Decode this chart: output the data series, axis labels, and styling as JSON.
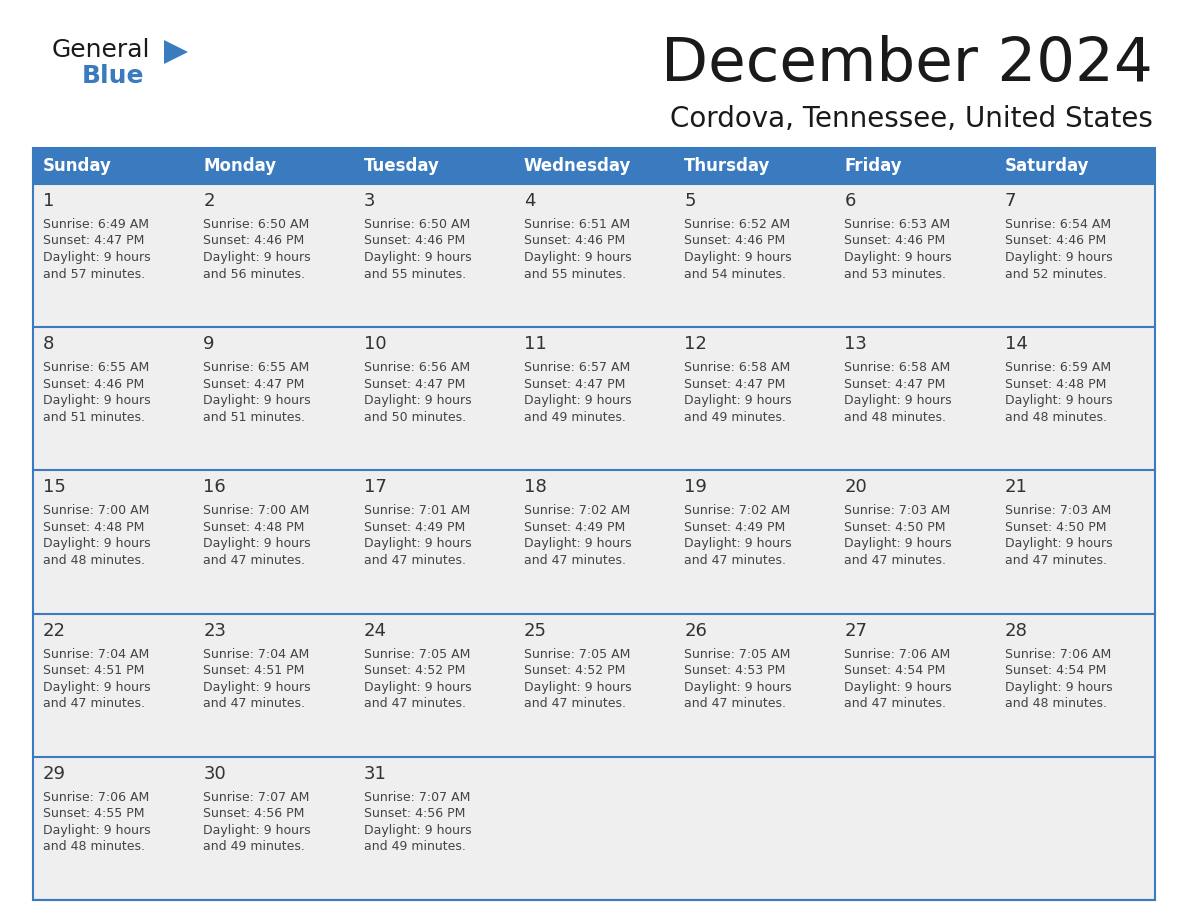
{
  "title": "December 2024",
  "subtitle": "Cordova, Tennessee, United States",
  "header_color": "#3a7abf",
  "header_text_color": "#ffffff",
  "cell_bg_color": "#efefef",
  "border_color": "#3a7abf",
  "text_color": "#333333",
  "days_of_week": [
    "Sunday",
    "Monday",
    "Tuesday",
    "Wednesday",
    "Thursday",
    "Friday",
    "Saturday"
  ],
  "weeks": [
    [
      {
        "day": "1",
        "sunrise": "6:49 AM",
        "sunset": "4:47 PM",
        "daylight_line1": "Daylight: 9 hours",
        "daylight_line2": "and 57 minutes."
      },
      {
        "day": "2",
        "sunrise": "6:50 AM",
        "sunset": "4:46 PM",
        "daylight_line1": "Daylight: 9 hours",
        "daylight_line2": "and 56 minutes."
      },
      {
        "day": "3",
        "sunrise": "6:50 AM",
        "sunset": "4:46 PM",
        "daylight_line1": "Daylight: 9 hours",
        "daylight_line2": "and 55 minutes."
      },
      {
        "day": "4",
        "sunrise": "6:51 AM",
        "sunset": "4:46 PM",
        "daylight_line1": "Daylight: 9 hours",
        "daylight_line2": "and 55 minutes."
      },
      {
        "day": "5",
        "sunrise": "6:52 AM",
        "sunset": "4:46 PM",
        "daylight_line1": "Daylight: 9 hours",
        "daylight_line2": "and 54 minutes."
      },
      {
        "day": "6",
        "sunrise": "6:53 AM",
        "sunset": "4:46 PM",
        "daylight_line1": "Daylight: 9 hours",
        "daylight_line2": "and 53 minutes."
      },
      {
        "day": "7",
        "sunrise": "6:54 AM",
        "sunset": "4:46 PM",
        "daylight_line1": "Daylight: 9 hours",
        "daylight_line2": "and 52 minutes."
      }
    ],
    [
      {
        "day": "8",
        "sunrise": "6:55 AM",
        "sunset": "4:46 PM",
        "daylight_line1": "Daylight: 9 hours",
        "daylight_line2": "and 51 minutes."
      },
      {
        "day": "9",
        "sunrise": "6:55 AM",
        "sunset": "4:47 PM",
        "daylight_line1": "Daylight: 9 hours",
        "daylight_line2": "and 51 minutes."
      },
      {
        "day": "10",
        "sunrise": "6:56 AM",
        "sunset": "4:47 PM",
        "daylight_line1": "Daylight: 9 hours",
        "daylight_line2": "and 50 minutes."
      },
      {
        "day": "11",
        "sunrise": "6:57 AM",
        "sunset": "4:47 PM",
        "daylight_line1": "Daylight: 9 hours",
        "daylight_line2": "and 49 minutes."
      },
      {
        "day": "12",
        "sunrise": "6:58 AM",
        "sunset": "4:47 PM",
        "daylight_line1": "Daylight: 9 hours",
        "daylight_line2": "and 49 minutes."
      },
      {
        "day": "13",
        "sunrise": "6:58 AM",
        "sunset": "4:47 PM",
        "daylight_line1": "Daylight: 9 hours",
        "daylight_line2": "and 48 minutes."
      },
      {
        "day": "14",
        "sunrise": "6:59 AM",
        "sunset": "4:48 PM",
        "daylight_line1": "Daylight: 9 hours",
        "daylight_line2": "and 48 minutes."
      }
    ],
    [
      {
        "day": "15",
        "sunrise": "7:00 AM",
        "sunset": "4:48 PM",
        "daylight_line1": "Daylight: 9 hours",
        "daylight_line2": "and 48 minutes."
      },
      {
        "day": "16",
        "sunrise": "7:00 AM",
        "sunset": "4:48 PM",
        "daylight_line1": "Daylight: 9 hours",
        "daylight_line2": "and 47 minutes."
      },
      {
        "day": "17",
        "sunrise": "7:01 AM",
        "sunset": "4:49 PM",
        "daylight_line1": "Daylight: 9 hours",
        "daylight_line2": "and 47 minutes."
      },
      {
        "day": "18",
        "sunrise": "7:02 AM",
        "sunset": "4:49 PM",
        "daylight_line1": "Daylight: 9 hours",
        "daylight_line2": "and 47 minutes."
      },
      {
        "day": "19",
        "sunrise": "7:02 AM",
        "sunset": "4:49 PM",
        "daylight_line1": "Daylight: 9 hours",
        "daylight_line2": "and 47 minutes."
      },
      {
        "day": "20",
        "sunrise": "7:03 AM",
        "sunset": "4:50 PM",
        "daylight_line1": "Daylight: 9 hours",
        "daylight_line2": "and 47 minutes."
      },
      {
        "day": "21",
        "sunrise": "7:03 AM",
        "sunset": "4:50 PM",
        "daylight_line1": "Daylight: 9 hours",
        "daylight_line2": "and 47 minutes."
      }
    ],
    [
      {
        "day": "22",
        "sunrise": "7:04 AM",
        "sunset": "4:51 PM",
        "daylight_line1": "Daylight: 9 hours",
        "daylight_line2": "and 47 minutes."
      },
      {
        "day": "23",
        "sunrise": "7:04 AM",
        "sunset": "4:51 PM",
        "daylight_line1": "Daylight: 9 hours",
        "daylight_line2": "and 47 minutes."
      },
      {
        "day": "24",
        "sunrise": "7:05 AM",
        "sunset": "4:52 PM",
        "daylight_line1": "Daylight: 9 hours",
        "daylight_line2": "and 47 minutes."
      },
      {
        "day": "25",
        "sunrise": "7:05 AM",
        "sunset": "4:52 PM",
        "daylight_line1": "Daylight: 9 hours",
        "daylight_line2": "and 47 minutes."
      },
      {
        "day": "26",
        "sunrise": "7:05 AM",
        "sunset": "4:53 PM",
        "daylight_line1": "Daylight: 9 hours",
        "daylight_line2": "and 47 minutes."
      },
      {
        "day": "27",
        "sunrise": "7:06 AM",
        "sunset": "4:54 PM",
        "daylight_line1": "Daylight: 9 hours",
        "daylight_line2": "and 47 minutes."
      },
      {
        "day": "28",
        "sunrise": "7:06 AM",
        "sunset": "4:54 PM",
        "daylight_line1": "Daylight: 9 hours",
        "daylight_line2": "and 48 minutes."
      }
    ],
    [
      {
        "day": "29",
        "sunrise": "7:06 AM",
        "sunset": "4:55 PM",
        "daylight_line1": "Daylight: 9 hours",
        "daylight_line2": "and 48 minutes."
      },
      {
        "day": "30",
        "sunrise": "7:07 AM",
        "sunset": "4:56 PM",
        "daylight_line1": "Daylight: 9 hours",
        "daylight_line2": "and 49 minutes."
      },
      {
        "day": "31",
        "sunrise": "7:07 AM",
        "sunset": "4:56 PM",
        "daylight_line1": "Daylight: 9 hours",
        "daylight_line2": "and 49 minutes."
      },
      null,
      null,
      null,
      null
    ]
  ]
}
